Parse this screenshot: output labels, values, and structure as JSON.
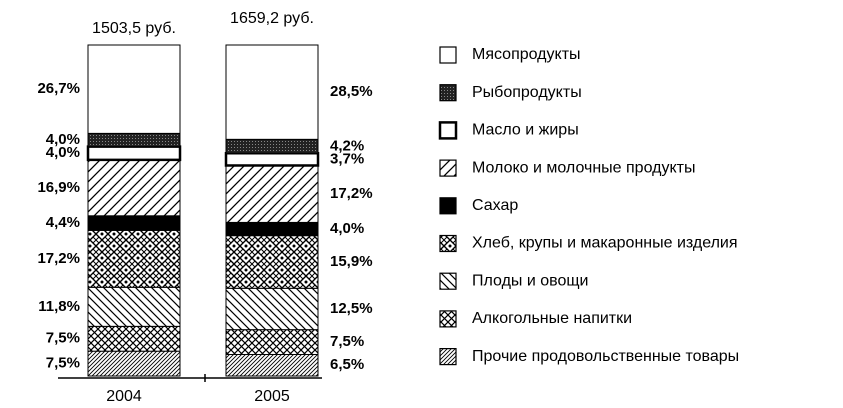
{
  "chart_data": {
    "type": "bar",
    "stacked": true,
    "categories": [
      "2004",
      "2005"
    ],
    "annotations": [
      "1503,5 руб.",
      "1659,2 руб."
    ],
    "ylim": [
      0,
      100
    ],
    "series": [
      {
        "name": "Мясопродукты",
        "values": [
          26.7,
          28.5
        ],
        "value_labels": [
          "26,7%",
          "28,5%"
        ]
      },
      {
        "name": "Рыбопродукты",
        "values": [
          4.0,
          4.2
        ],
        "value_labels": [
          "4,0%",
          "4,2%"
        ]
      },
      {
        "name": "Масло и жиры",
        "values": [
          4.0,
          3.7
        ],
        "value_labels": [
          "4,0%",
          "3,7%"
        ]
      },
      {
        "name": "Молоко и молочные продукты",
        "values": [
          16.9,
          17.2
        ],
        "value_labels": [
          "16,9%",
          "17,2%"
        ]
      },
      {
        "name": "Сахар",
        "values": [
          4.4,
          4.0
        ],
        "value_labels": [
          "4,4%",
          "4,0%"
        ]
      },
      {
        "name": "Хлеб, крупы и макаронные изделия",
        "values": [
          17.2,
          15.9
        ],
        "value_labels": [
          "17,2%",
          "15,9%"
        ]
      },
      {
        "name": "Плоды и овощи",
        "values": [
          11.8,
          12.5
        ],
        "value_labels": [
          "11,8%",
          "12,5%"
        ]
      },
      {
        "name": "Алкогольные напитки",
        "values": [
          7.5,
          7.5
        ],
        "value_labels": [
          "7,5%",
          "7,5%"
        ]
      },
      {
        "name": "Прочие продовольственные товары",
        "values": [
          7.5,
          6.5
        ],
        "value_labels": [
          "7,5%",
          "6,5%"
        ]
      }
    ]
  }
}
